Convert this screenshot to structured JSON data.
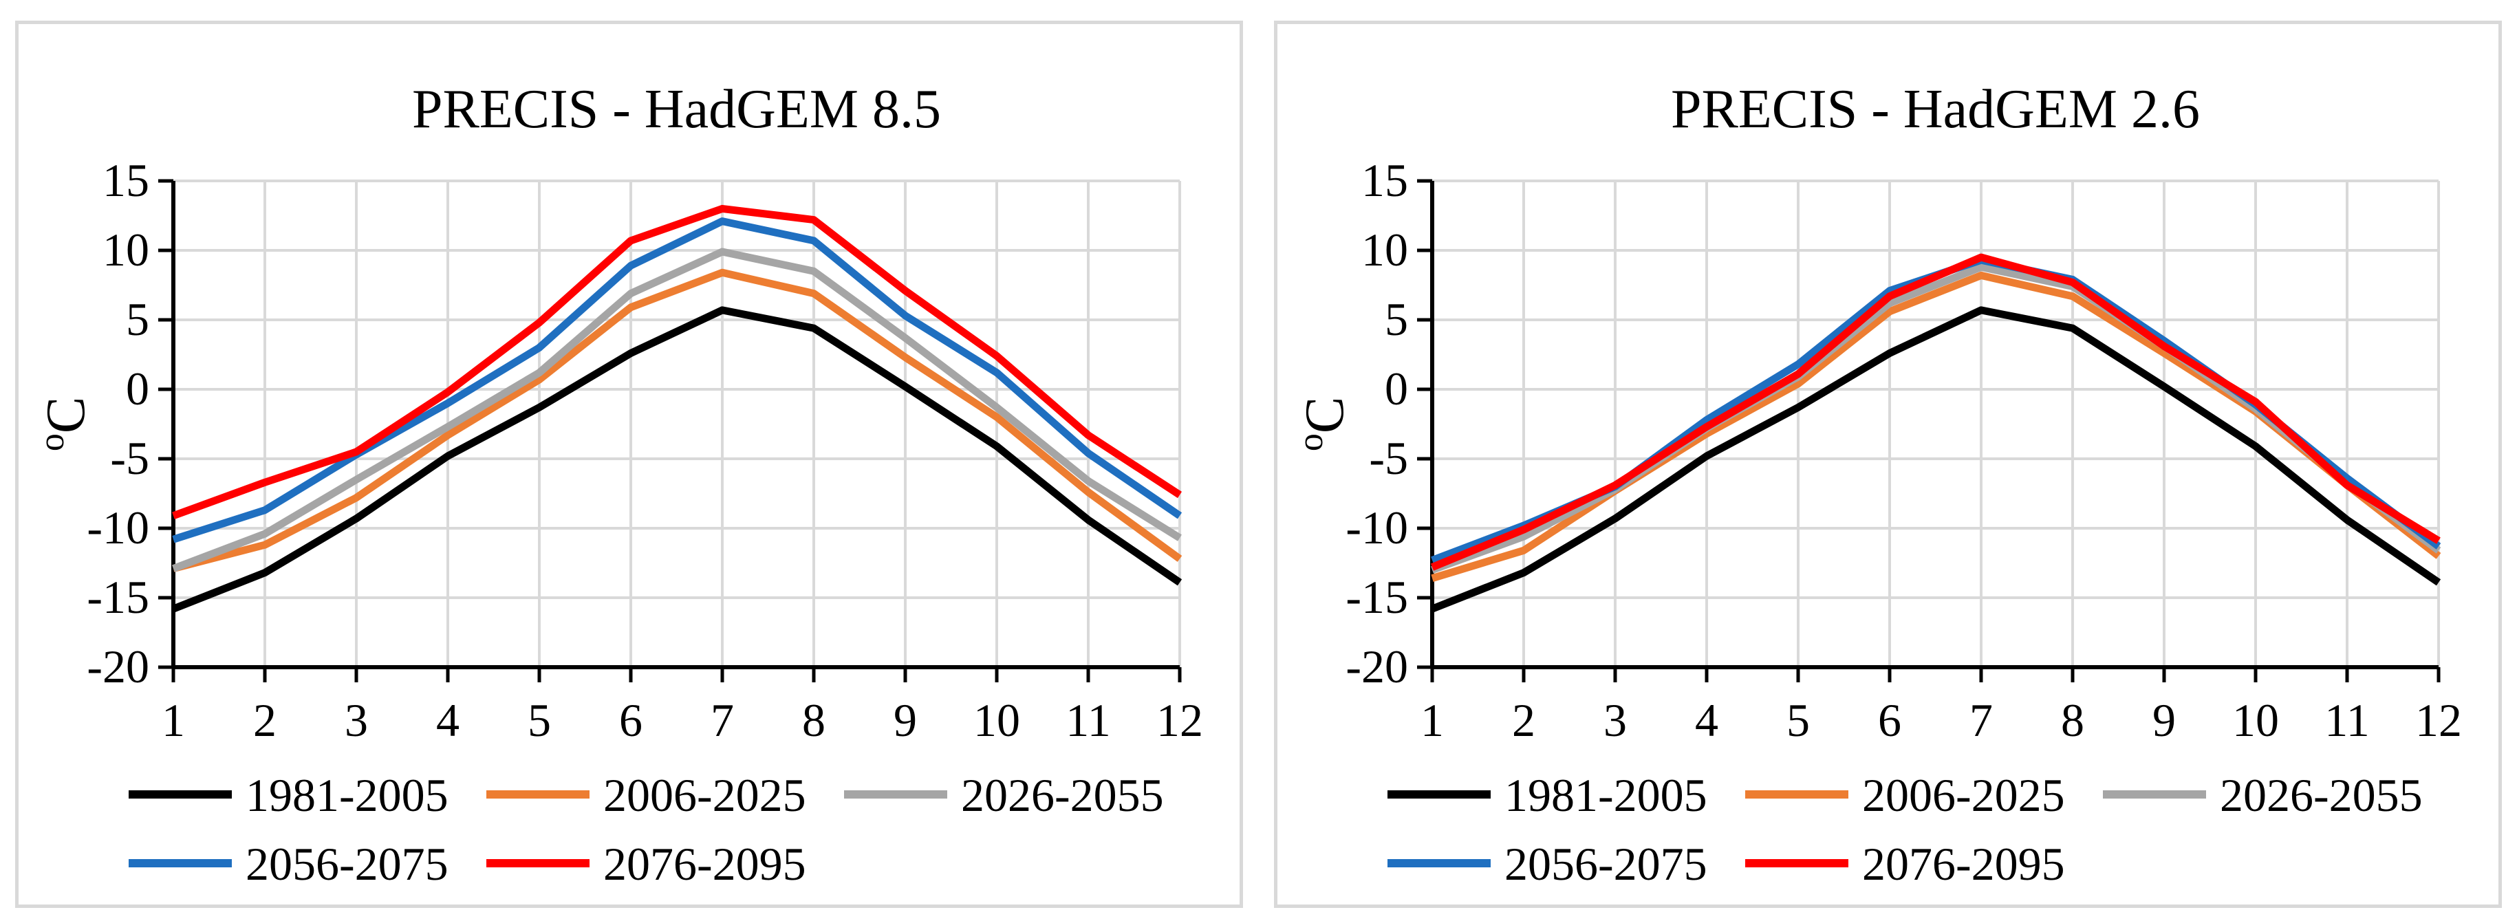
{
  "chart_data": [
    {
      "type": "line",
      "title": "PRECIS - HadGEM 8.5",
      "xlabel": "",
      "ylabel": "oC",
      "ylabel_sup": "o",
      "ylabel_main": "C",
      "categories": [
        "1",
        "2",
        "3",
        "4",
        "5",
        "6",
        "7",
        "8",
        "9",
        "10",
        "11",
        "12"
      ],
      "yticks": [
        "15",
        "10",
        "5",
        "0",
        "-5",
        "-10",
        "-15",
        "-20"
      ],
      "ylim": [
        -20,
        15
      ],
      "grid": true,
      "legend_position": "bottom",
      "series": [
        {
          "name": "1981-2005",
          "color": "#000000",
          "values": [
            -15.8,
            -13.2,
            -9.3,
            -4.8,
            -1.3,
            2.6,
            5.7,
            4.4,
            0.2,
            -4.1,
            -9.4,
            -13.9
          ]
        },
        {
          "name": "2006-2025",
          "color": "#ED7D31",
          "values": [
            -12.9,
            -11.2,
            -7.8,
            -3.3,
            0.7,
            5.9,
            8.4,
            6.9,
            2.3,
            -2.0,
            -7.4,
            -12.2
          ]
        },
        {
          "name": "2026-2055",
          "color": "#A5A5A5",
          "values": [
            -12.9,
            -10.4,
            -6.5,
            -2.7,
            1.2,
            6.9,
            9.9,
            8.5,
            3.7,
            -1.3,
            -6.6,
            -10.7
          ]
        },
        {
          "name": "2056-2075",
          "color": "#1F6FC0",
          "values": [
            -10.8,
            -8.7,
            -4.7,
            -1.0,
            3.0,
            8.9,
            12.1,
            10.7,
            5.3,
            1.2,
            -4.6,
            -9.1
          ]
        },
        {
          "name": "2076-2095",
          "color": "#FF0000",
          "values": [
            -9.1,
            -6.7,
            -4.5,
            -0.2,
            4.8,
            10.7,
            13.0,
            12.2,
            7.1,
            2.4,
            -3.3,
            -7.6
          ]
        }
      ]
    },
    {
      "type": "line",
      "title": "PRECIS - HadGEM 2.6",
      "xlabel": "",
      "ylabel": "oC",
      "ylabel_sup": "o",
      "ylabel_main": "C",
      "categories": [
        "1",
        "2",
        "3",
        "4",
        "5",
        "6",
        "7",
        "8",
        "9",
        "10",
        "11",
        "12"
      ],
      "yticks": [
        "15",
        "10",
        "5",
        "0",
        "-5",
        "-10",
        "-15",
        "-20"
      ],
      "ylim": [
        -20,
        15
      ],
      "grid": true,
      "legend_position": "bottom",
      "series": [
        {
          "name": "1981-2005",
          "color": "#000000",
          "values": [
            -15.8,
            -13.2,
            -9.3,
            -4.8,
            -1.3,
            2.6,
            5.7,
            4.4,
            0.2,
            -4.1,
            -9.4,
            -13.9
          ]
        },
        {
          "name": "2006-2025",
          "color": "#ED7D31",
          "values": [
            -13.6,
            -11.6,
            -7.3,
            -3.2,
            0.4,
            5.6,
            8.2,
            6.7,
            2.6,
            -1.6,
            -6.9,
            -12.0
          ]
        },
        {
          "name": "2026-2055",
          "color": "#A5A5A5",
          "values": [
            -13.0,
            -10.6,
            -7.2,
            -2.8,
            0.9,
            6.2,
            8.8,
            7.4,
            3.1,
            -1.4,
            -6.7,
            -11.6
          ]
        },
        {
          "name": "2056-2075",
          "color": "#1F6FC0",
          "values": [
            -12.3,
            -9.8,
            -7.0,
            -2.2,
            1.8,
            7.1,
            9.3,
            7.9,
            3.5,
            -1.1,
            -6.4,
            -11.3
          ]
        },
        {
          "name": "2076-2095",
          "color": "#FF0000",
          "values": [
            -12.8,
            -10.1,
            -6.9,
            -2.7,
            1.1,
            6.7,
            9.5,
            7.7,
            3.1,
            -0.9,
            -6.9,
            -10.9
          ]
        }
      ]
    }
  ]
}
